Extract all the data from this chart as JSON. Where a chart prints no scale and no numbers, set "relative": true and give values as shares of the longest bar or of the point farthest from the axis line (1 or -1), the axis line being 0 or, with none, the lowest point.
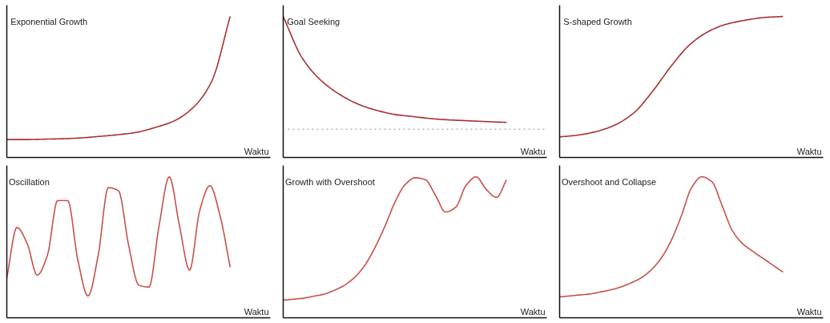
{
  "chart_data": [
    {
      "type": "line",
      "title": "Exponential Growth",
      "xlabel": "Waktu",
      "relative": true,
      "color": "#a83232",
      "categories": [
        null,
        null,
        null,
        null,
        null,
        null,
        null,
        null,
        null,
        null,
        null,
        null,
        null
      ],
      "values": [
        0.127,
        0.127,
        0.13,
        0.133,
        0.139,
        0.15,
        0.162,
        0.179,
        0.214,
        0.26,
        0.353,
        0.538,
        1
      ]
    },
    {
      "type": "line",
      "title": "Goal Seeking",
      "xlabel": "Waktu",
      "relative": true,
      "color": "#a83232",
      "categories": [
        null,
        null,
        null,
        null,
        null,
        null,
        null,
        null,
        null,
        null,
        null,
        null,
        null
      ],
      "values": [
        1,
        0.71,
        0.55,
        0.45,
        0.38,
        0.335,
        0.305,
        0.29,
        0.275,
        0.266,
        0.26,
        0.254,
        0.249
      ],
      "ref_lines": [
        {
          "axis": "y",
          "value": 0.2,
          "color": "#a8b4c8",
          "line_style": "dotted"
        }
      ]
    },
    {
      "type": "line",
      "title": "S-shaped Growth",
      "xlabel": "Waktu",
      "relative": true,
      "color": "#a83232",
      "categories": [
        null,
        null,
        null,
        null,
        null,
        null,
        null,
        null,
        null,
        null,
        null,
        null,
        null
      ],
      "values": [
        0.146,
        0.159,
        0.185,
        0.232,
        0.318,
        0.47,
        0.649,
        0.801,
        0.894,
        0.947,
        0.974,
        0.993,
        1
      ]
    },
    {
      "type": "line",
      "title": "Oscillation",
      "xlabel": "Waktu",
      "relative": true,
      "color": "#c8504b",
      "categories": [
        null,
        null,
        null,
        null,
        null,
        null,
        null,
        null,
        null,
        null,
        null,
        null,
        null,
        null,
        null,
        null,
        null,
        null,
        null,
        null,
        null,
        null,
        null
      ],
      "values": [
        0.282,
        0.641,
        0.528,
        0.303,
        0.444,
        0.831,
        0.831,
        0.408,
        0.155,
        0.444,
        0.923,
        0.901,
        0.514,
        0.232,
        0.218,
        0.655,
        1,
        0.655,
        0.338,
        0.761,
        0.937,
        0.725,
        0.359
      ]
    },
    {
      "type": "line",
      "title": "Growth with Overshoot",
      "xlabel": "Waktu",
      "relative": true,
      "color": "#c8504b",
      "categories": [
        null,
        null,
        null,
        null,
        null,
        null,
        null,
        null,
        null,
        null,
        null,
        null,
        null,
        null,
        null,
        null,
        null,
        null,
        null,
        null,
        null,
        null,
        null
      ],
      "values": [
        0.125,
        0.132,
        0.139,
        0.153,
        0.167,
        0.194,
        0.229,
        0.285,
        0.368,
        0.493,
        0.646,
        0.819,
        0.944,
        0.993,
        0.979,
        0.868,
        0.75,
        0.785,
        0.938,
        1,
        0.91,
        0.854,
        0.979
      ]
    },
    {
      "type": "line",
      "title": "Overshoot and Collapse",
      "xlabel": "Waktu",
      "relative": true,
      "color": "#c8504b",
      "categories": [
        null,
        null,
        null,
        null,
        null,
        null,
        null,
        null,
        null,
        null,
        null,
        null,
        null,
        null,
        null,
        null,
        null,
        null,
        null,
        null,
        null,
        null,
        null
      ],
      "values": [
        0.148,
        0.155,
        0.162,
        0.169,
        0.183,
        0.197,
        0.218,
        0.246,
        0.282,
        0.338,
        0.423,
        0.549,
        0.725,
        0.923,
        1,
        0.965,
        0.796,
        0.62,
        0.528,
        0.472,
        0.423,
        0.373,
        0.324
      ]
    }
  ]
}
